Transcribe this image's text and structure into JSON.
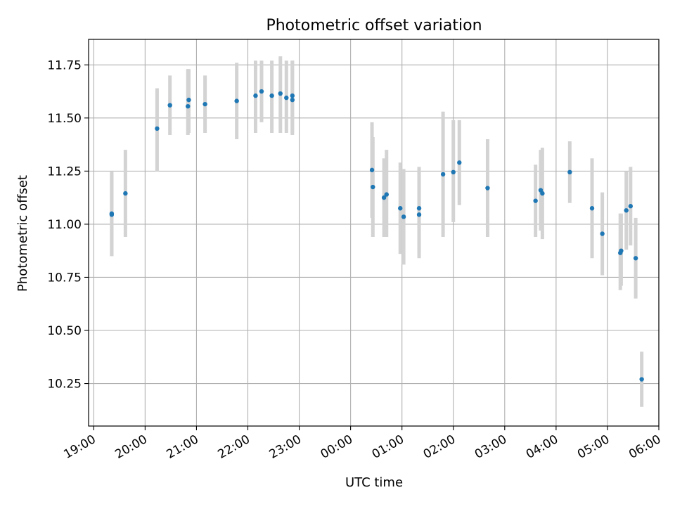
{
  "chart_data": {
    "type": "scatter",
    "title": "Photometric offset variation",
    "xlabel": "UTC time",
    "ylabel": "Photometric offset",
    "x_tick_labels": [
      "19:00",
      "20:00",
      "21:00",
      "22:00",
      "23:00",
      "00:00",
      "01:00",
      "02:00",
      "03:00",
      "04:00",
      "05:00",
      "06:00"
    ],
    "y_tick_labels": [
      "10.25",
      "10.50",
      "10.75",
      "11.00",
      "11.25",
      "11.50",
      "11.75"
    ],
    "y_ticks": [
      10.25,
      10.5,
      10.75,
      11.0,
      11.25,
      11.5,
      11.75
    ],
    "xlim": [
      "18:54",
      "06:00"
    ],
    "ylim": [
      10.05,
      11.87
    ],
    "grid": true,
    "marker_color": "#1f77b4",
    "errorbar_color": "#d3d3d3",
    "points": [
      {
        "x": "19:21",
        "y": 11.05,
        "err_low": 10.85,
        "err_high": 11.25
      },
      {
        "x": "19:21",
        "y": 11.045,
        "err_low": 10.85,
        "err_high": 11.24
      },
      {
        "x": "19:37",
        "y": 11.145,
        "err_low": 10.94,
        "err_high": 11.35
      },
      {
        "x": "20:14",
        "y": 11.45,
        "err_low": 11.25,
        "err_high": 11.64
      },
      {
        "x": "20:29",
        "y": 11.56,
        "err_low": 11.42,
        "err_high": 11.7
      },
      {
        "x": "20:50",
        "y": 11.555,
        "err_low": 11.42,
        "err_high": 11.73
      },
      {
        "x": "20:51",
        "y": 11.585,
        "err_low": 11.43,
        "err_high": 11.73
      },
      {
        "x": "21:10",
        "y": 11.565,
        "err_low": 11.43,
        "err_high": 11.7
      },
      {
        "x": "21:47",
        "y": 11.58,
        "err_low": 11.4,
        "err_high": 11.76
      },
      {
        "x": "22:09",
        "y": 11.605,
        "err_low": 11.43,
        "err_high": 11.77
      },
      {
        "x": "22:16",
        "y": 11.625,
        "err_low": 11.48,
        "err_high": 11.77
      },
      {
        "x": "22:28",
        "y": 11.605,
        "err_low": 11.43,
        "err_high": 11.77
      },
      {
        "x": "22:38",
        "y": 11.615,
        "err_low": 11.43,
        "err_high": 11.79
      },
      {
        "x": "22:45",
        "y": 11.595,
        "err_low": 11.43,
        "err_high": 11.77
      },
      {
        "x": "22:52",
        "y": 11.605,
        "err_low": 11.43,
        "err_high": 11.77
      },
      {
        "x": "22:52",
        "y": 11.585,
        "err_low": 11.42,
        "err_high": 11.77
      },
      {
        "x": "00:25",
        "y": 11.255,
        "err_low": 11.03,
        "err_high": 11.48
      },
      {
        "x": "00:26",
        "y": 11.175,
        "err_low": 10.94,
        "err_high": 11.41
      },
      {
        "x": "00:39",
        "y": 11.125,
        "err_low": 10.94,
        "err_high": 11.31
      },
      {
        "x": "00:42",
        "y": 11.14,
        "err_low": 10.94,
        "err_high": 11.35
      },
      {
        "x": "00:58",
        "y": 11.075,
        "err_low": 10.86,
        "err_high": 11.29
      },
      {
        "x": "01:02",
        "y": 11.035,
        "err_low": 10.81,
        "err_high": 11.26
      },
      {
        "x": "01:20",
        "y": 11.045,
        "err_low": 10.84,
        "err_high": 11.26
      },
      {
        "x": "01:20",
        "y": 11.075,
        "err_low": 10.87,
        "err_high": 11.27
      },
      {
        "x": "01:48",
        "y": 11.235,
        "err_low": 10.94,
        "err_high": 11.53
      },
      {
        "x": "02:00",
        "y": 11.245,
        "err_low": 11.01,
        "err_high": 11.49
      },
      {
        "x": "02:07",
        "y": 11.29,
        "err_low": 11.09,
        "err_high": 11.49
      },
      {
        "x": "02:40",
        "y": 11.17,
        "err_low": 10.94,
        "err_high": 11.4
      },
      {
        "x": "03:36",
        "y": 11.11,
        "err_low": 10.94,
        "err_high": 11.28
      },
      {
        "x": "03:42",
        "y": 11.16,
        "err_low": 10.97,
        "err_high": 11.35
      },
      {
        "x": "03:44",
        "y": 11.145,
        "err_low": 10.93,
        "err_high": 11.36
      },
      {
        "x": "04:16",
        "y": 11.245,
        "err_low": 11.1,
        "err_high": 11.39
      },
      {
        "x": "04:42",
        "y": 11.075,
        "err_low": 10.84,
        "err_high": 11.31
      },
      {
        "x": "04:54",
        "y": 10.955,
        "err_low": 10.76,
        "err_high": 11.15
      },
      {
        "x": "05:15",
        "y": 10.865,
        "err_low": 10.69,
        "err_high": 11.05
      },
      {
        "x": "05:16",
        "y": 10.875,
        "err_low": 10.71,
        "err_high": 11.05
      },
      {
        "x": "05:22",
        "y": 11.065,
        "err_low": 10.88,
        "err_high": 11.25
      },
      {
        "x": "05:27",
        "y": 11.085,
        "err_low": 10.9,
        "err_high": 11.27
      },
      {
        "x": "05:33",
        "y": 10.84,
        "err_low": 10.65,
        "err_high": 11.03
      },
      {
        "x": "05:40",
        "y": 10.27,
        "err_low": 10.14,
        "err_high": 10.4
      }
    ]
  }
}
